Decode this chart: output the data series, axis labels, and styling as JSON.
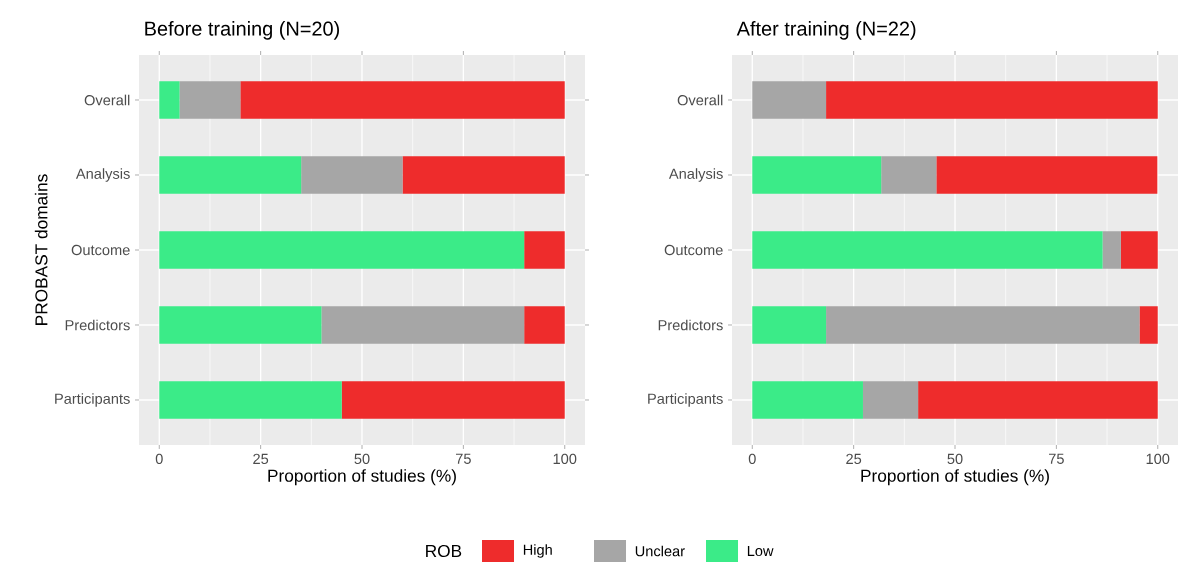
{
  "chart_data": [
    {
      "type": "bar",
      "orientation": "horizontal",
      "stacked": true,
      "title": "Before training (N=20)",
      "xlabel": "Proportion of studies (%)",
      "ylabel": "PROBAST domains",
      "categories": [
        "Overall",
        "Analysis",
        "Outcome",
        "Predictors",
        "Participants"
      ],
      "series": [
        {
          "name": "Low",
          "color": "#3beb88",
          "values": [
            5,
            35,
            90,
            40,
            45
          ]
        },
        {
          "name": "Unclear",
          "color": "#a6a6a6",
          "values": [
            15,
            25,
            0,
            50,
            0
          ]
        },
        {
          "name": "High",
          "color": "#ee2c2c",
          "values": [
            80,
            40,
            10,
            10,
            55
          ]
        }
      ],
      "xlim": [
        -5,
        105
      ],
      "xticks": [
        0,
        25,
        50,
        75,
        100
      ],
      "grid": true,
      "legend": "bottom",
      "legend_title": "ROB"
    },
    {
      "type": "bar",
      "orientation": "horizontal",
      "stacked": true,
      "title": "After training (N=22)",
      "xlabel": "Proportion of studies (%)",
      "categories": [
        "Overall",
        "Analysis",
        "Outcome",
        "Predictors",
        "Participants"
      ],
      "series": [
        {
          "color": "#3beb88",
          "values": [
            0,
            31.8,
            86.4,
            18.2,
            27.3
          ]
        },
        {
          "color": "#a6a6a6",
          "values": [
            18.2,
            13.6,
            4.5,
            77.3,
            13.6
          ]
        },
        {
          "color": "#ee2c2c",
          "values": [
            81.8,
            54.5,
            9.1,
            4.5,
            59.1
          ]
        }
      ],
      "xlim": [
        -5,
        105
      ],
      "xticks": [
        0,
        25,
        50,
        75,
        100
      ],
      "grid": true
    }
  ]
}
